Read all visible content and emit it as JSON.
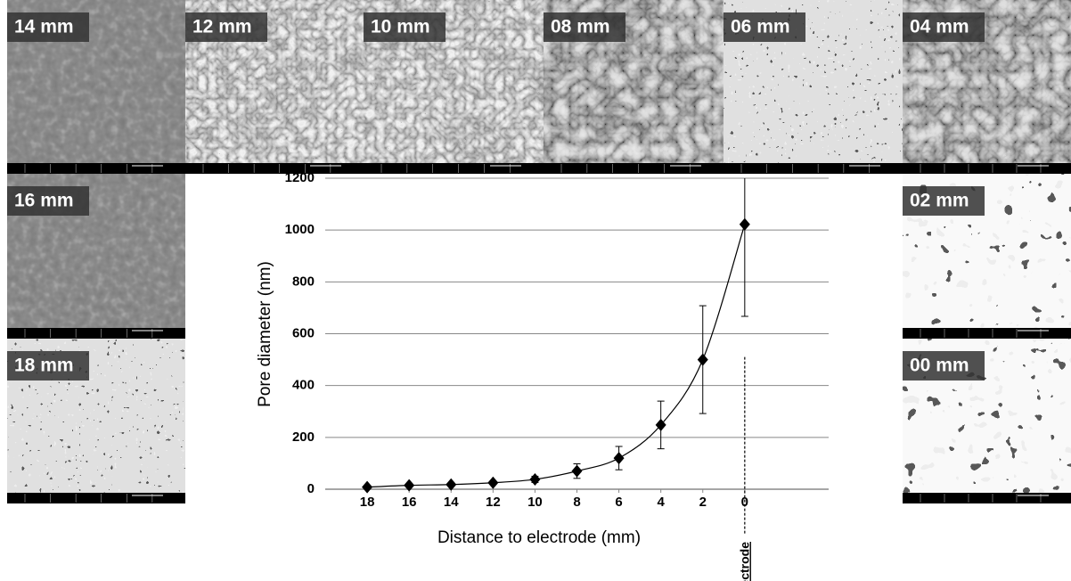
{
  "panels": [
    {
      "label": "14 mm"
    },
    {
      "label": "12 mm"
    },
    {
      "label": "10 mm"
    },
    {
      "label": "08 mm"
    },
    {
      "label": "06 mm"
    },
    {
      "label": "04 mm"
    },
    {
      "label": "16 mm"
    },
    {
      "label": "02 mm"
    },
    {
      "label": "18 mm"
    },
    {
      "label": "00 mm"
    }
  ],
  "chart_data": {
    "type": "scatter",
    "x_label": "Distance to electrode (mm)",
    "y_label": "Pore diameter (nm)",
    "x": [
      18,
      16,
      14,
      12,
      10,
      8,
      6,
      4,
      2,
      0
    ],
    "series": [
      {
        "color": "#000000",
        "values": [
          8,
          15,
          18,
          25,
          38,
          70,
          120,
          248,
          500,
          1022
        ],
        "errors": [
          3,
          4,
          4,
          5,
          12,
          28,
          45,
          92,
          208,
          355
        ]
      }
    ],
    "xlim": [
      20,
      -4
    ],
    "xticks": [
      18,
      16,
      14,
      12,
      10,
      8,
      6,
      4,
      2,
      0
    ],
    "ylim": [
      0,
      1200
    ],
    "yticks": [
      0,
      200,
      400,
      600,
      800,
      1000,
      1200
    ],
    "grid": true,
    "trendline": true,
    "annotation": {
      "text": "electrode",
      "x": 0
    }
  }
}
